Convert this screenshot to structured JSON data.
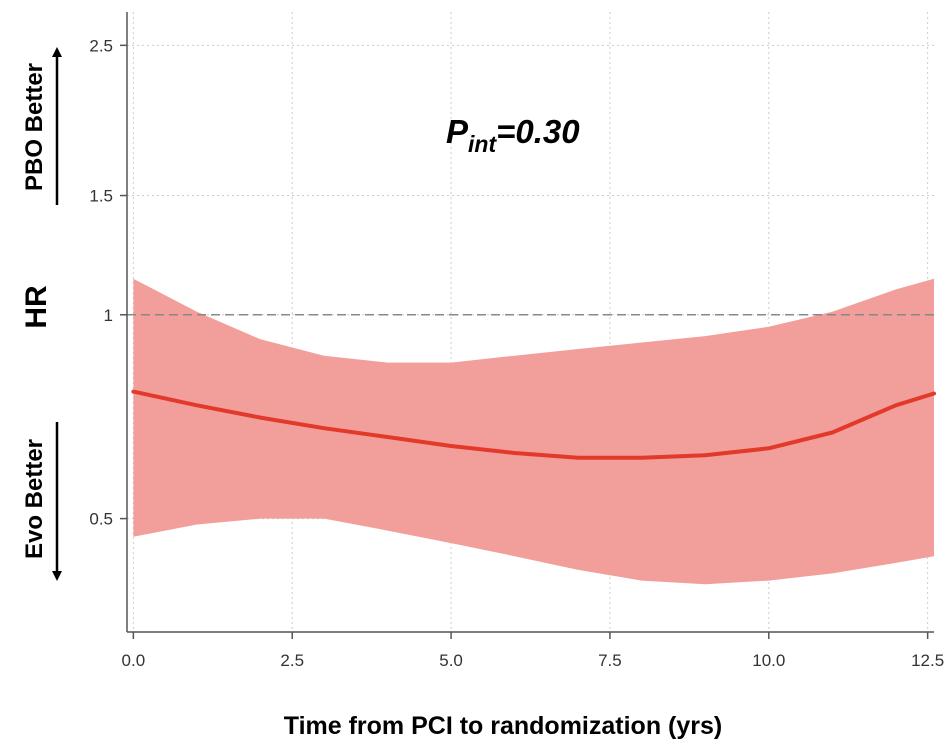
{
  "chart_data": {
    "type": "line",
    "title": "",
    "xlabel": "Time from PCI to randomization (yrs)",
    "ylabel": "HR",
    "xlim": [
      -0.1,
      12.6
    ],
    "ylim": [
      0.34,
      2.8
    ],
    "y_scale": "log",
    "grid": true,
    "x_ticks": [
      0,
      2.5,
      5,
      7.5,
      10,
      12.5
    ],
    "x_tick_labels": [
      "0.0",
      "2.5",
      "5.0",
      "7.5",
      "10.0",
      "12.5"
    ],
    "y_ticks": [
      0.5,
      1,
      1.5,
      2.5
    ],
    "y_tick_labels": [
      "0.5",
      "1",
      "1.5",
      "2.5"
    ],
    "reference_line": {
      "y": 1,
      "style": "dashed"
    },
    "series": [
      {
        "type": "line",
        "x": [
          0,
          1,
          2,
          3,
          4,
          5,
          6,
          7,
          8,
          9,
          10,
          11,
          12,
          12.6
        ],
        "y": [
          0.77,
          0.735,
          0.705,
          0.68,
          0.66,
          0.64,
          0.625,
          0.615,
          0.615,
          0.62,
          0.635,
          0.67,
          0.735,
          0.765
        ]
      },
      {
        "type": "band",
        "x": [
          0,
          1,
          2,
          3,
          4,
          5,
          6,
          7,
          8,
          9,
          10,
          11,
          12,
          12.6
        ],
        "upper": [
          1.13,
          1.01,
          0.92,
          0.87,
          0.85,
          0.85,
          0.87,
          0.89,
          0.91,
          0.93,
          0.96,
          1.01,
          1.09,
          1.13
        ],
        "lower": [
          0.47,
          0.49,
          0.5,
          0.5,
          0.48,
          0.46,
          0.44,
          0.42,
          0.405,
          0.4,
          0.405,
          0.415,
          0.43,
          0.44
        ]
      }
    ],
    "annotation": {
      "p_symbol": "P",
      "p_subscript": "int",
      "p_value": "=0.30"
    },
    "direction_labels": {
      "up": "PBO Better",
      "down": "Evo Better"
    },
    "colors": {
      "line": "#e2392b",
      "band": "#f29e9b",
      "grid": "#cccccc",
      "reference": "#888888",
      "axis": "#555555"
    }
  }
}
